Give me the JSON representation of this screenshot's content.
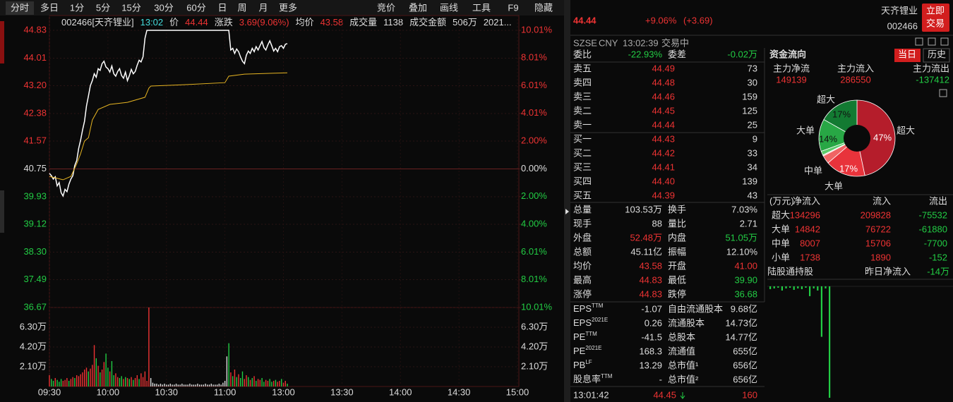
{
  "toolbar": {
    "tabs": [
      "分时",
      "多日",
      "1分",
      "5分",
      "15分",
      "30分",
      "60分",
      "日",
      "周",
      "月",
      "更多"
    ],
    "tools": [
      "竞价",
      "叠加",
      "画线",
      "工具",
      "F9",
      "隐藏"
    ]
  },
  "chart": {
    "type": "line",
    "info": [
      "002466[天齐锂业]",
      "13:02",
      "价",
      "44.44",
      "涨跌",
      "3.69(9.06%)",
      "均价",
      "43.58",
      "成交量",
      "1138",
      "成交金额",
      "506万",
      "2021..."
    ],
    "series": [
      {
        "color": "#ffffff",
        "x": [
          0,
          1,
          2,
          3,
          4,
          5,
          6,
          7,
          8,
          9,
          10,
          11,
          12,
          13,
          14,
          15,
          16,
          17,
          18,
          19,
          20,
          21,
          22,
          23,
          24,
          25,
          26,
          27,
          28,
          29,
          30,
          31,
          32,
          33,
          34,
          35,
          36,
          37,
          38,
          39,
          40,
          41,
          42,
          43,
          44,
          45,
          46,
          47,
          48,
          49,
          50,
          92,
          93,
          94,
          95,
          96,
          97,
          98,
          99,
          100,
          101,
          102,
          103,
          104,
          105,
          106,
          107,
          108,
          109,
          110,
          111,
          112,
          113,
          114,
          115,
          116,
          117,
          118,
          119,
          120,
          121,
          122
        ],
        "values": [
          40.62,
          40.55,
          40.45,
          40.52,
          40.25,
          40.35,
          40.05,
          39.95,
          40.15,
          40.08,
          40.3,
          40.45,
          40.55,
          40.85,
          41.0,
          41.35,
          41.6,
          41.9,
          42.15,
          42.6,
          42.9,
          43.2,
          43.35,
          43.55,
          43.45,
          43.7,
          43.65,
          43.85,
          43.92,
          43.75,
          43.7,
          43.6,
          43.78,
          43.55,
          43.48,
          43.62,
          43.7,
          43.5,
          43.42,
          43.6,
          43.35,
          43.5,
          43.68,
          43.55,
          43.62,
          43.8,
          43.95,
          43.9,
          44.05,
          44.6,
          44.83,
          44.83,
          44.25,
          44.3,
          44.15,
          44.28,
          44.2,
          44.05,
          43.92,
          43.85,
          44.1,
          44.22,
          44.15,
          44.3,
          44.2,
          44.35,
          44.25,
          44.38,
          44.5,
          44.32,
          44.25,
          44.4,
          44.52,
          44.38,
          44.22,
          44.3,
          44.2,
          44.35,
          44.38,
          44.3,
          44.42,
          44.44
        ]
      },
      {
        "color": "#e6b422",
        "x": [
          0,
          7,
          11,
          14,
          16,
          18,
          20,
          22,
          25,
          31,
          40,
          49,
          51,
          52,
          69,
          90,
          92,
          100,
          122
        ],
        "values": [
          40.53,
          40.43,
          40.53,
          40.9,
          41.2,
          41.57,
          41.67,
          42.19,
          42.5,
          42.65,
          42.71,
          42.86,
          43.13,
          43.19,
          43.23,
          43.29,
          43.48,
          43.54,
          43.58
        ]
      }
    ],
    "xlim": [
      0,
      240
    ],
    "xticks": [
      {
        "value": 0,
        "label": "09:30"
      },
      {
        "value": 30,
        "label": "10:00"
      },
      {
        "value": 60,
        "label": "10:30"
      },
      {
        "value": 90,
        "label": "11:00"
      },
      {
        "value": 120,
        "label": "13:00"
      },
      {
        "value": 150,
        "label": "13:30"
      },
      {
        "value": 180,
        "label": "14:00"
      },
      {
        "value": 210,
        "label": "14:30"
      },
      {
        "value": 240,
        "label": "15:00"
      }
    ],
    "ylim": [
      36.67,
      44.83
    ],
    "yticks": [
      44.83,
      44.01,
      {
        "value": 43.2,
        "label": "43.20"
      },
      42.38,
      41.57,
      40.75,
      39.93,
      39.12,
      {
        "value": 38.3,
        "label": "38.30"
      },
      37.49,
      36.67
    ],
    "y2lim": [
      -10.01,
      10.01
    ],
    "y2ticks": [
      {
        "value": 10.01,
        "label": "10.01%"
      },
      {
        "value": 8.01,
        "label": "8.01%"
      },
      {
        "value": 6.01,
        "label": "6.01%"
      },
      {
        "value": 4.01,
        "label": "4.01%"
      },
      {
        "value": 2,
        "label": "2.00%"
      },
      {
        "value": 0,
        "label": "0.00%"
      },
      {
        "value": -2,
        "label": "2.00%"
      },
      {
        "value": -4,
        "label": "4.00%"
      },
      {
        "value": -6.01,
        "label": "6.01%"
      },
      {
        "value": -8.01,
        "label": "8.01%"
      },
      {
        "value": -10.01,
        "label": "10.01%"
      }
    ],
    "volume": {
      "values": [
        1.2,
        0.8,
        0.6,
        0.9,
        0.7,
        0.5,
        0.8,
        0.6,
        0.7,
        0.9,
        0.6,
        0.8,
        1.0,
        0.9,
        1.2,
        1.1,
        1.3,
        1.5,
        1.8,
        2.0,
        1.6,
        1.9,
        2.3,
        4.4,
        3.0,
        2.2,
        1.5,
        1.8,
        2.6,
        3.5,
        2.0,
        1.6,
        2.7,
        1.2,
        1.4,
        1.0,
        0.9,
        1.1,
        0.8,
        1.0,
        0.9,
        0.8,
        1.0,
        0.7,
        0.9,
        1.2,
        0.8,
        1.4,
        1.0,
        1.6,
        0.6,
        8.4,
        0.9,
        0.4,
        0.3,
        0.3,
        0.2,
        0.3,
        0.2,
        0.3,
        0.2,
        0.2,
        0.3,
        0.2,
        0.2,
        0.3,
        0.2,
        0.2,
        0.3,
        0.2,
        0.2,
        0.2,
        0.3,
        0.2,
        0.2,
        0.2,
        0.3,
        0.2,
        0.2,
        0.2,
        0.3,
        0.2,
        0.2,
        0.3,
        0.2,
        0.2,
        0.2,
        0.3,
        0.2,
        0.4,
        0.6,
        3.2,
        4.6,
        1.5,
        1.1,
        1.8,
        1.0,
        1.3,
        0.9,
        1.6,
        0.8,
        1.2,
        1.0,
        0.7,
        0.9,
        1.1,
        0.6,
        0.8,
        0.7,
        0.9,
        0.5,
        0.7,
        0.6,
        0.8,
        0.5,
        0.6,
        0.7,
        0.5,
        0.6,
        0.8,
        0.4,
        0.6,
        0.3
      ],
      "colors": [
        "#e33",
        "#2c4",
        "#2c4",
        "#e33",
        "#2c4",
        "#2c4",
        "#2c4",
        "#e33",
        "#e33",
        "#e33",
        "#2c4",
        "#e33",
        "#e33",
        "#2c4",
        "#e33",
        "#e33",
        "#e33",
        "#e33",
        "#e33",
        "#e33",
        "#2c4",
        "#e33",
        "#e33",
        "#e33",
        "#2c4",
        "#e33",
        "#2c4",
        "#e33",
        "#e33",
        "#2c4",
        "#2c4",
        "#e33",
        "#2c4",
        "#2c4",
        "#e33",
        "#e33",
        "#2c4",
        "#2c4",
        "#e33",
        "#2c4",
        "#e33",
        "#2c4",
        "#e33",
        "#2c4",
        "#e33",
        "#e33",
        "#2c4",
        "#e33",
        "#e33",
        "#e33",
        "#e33",
        "#e33",
        "#ddd",
        "#ddd",
        "#ddd",
        "#ddd",
        "#ddd",
        "#ddd",
        "#ddd",
        "#ddd",
        "#ddd",
        "#ddd",
        "#ddd",
        "#ddd",
        "#ddd",
        "#ddd",
        "#ddd",
        "#ddd",
        "#ddd",
        "#ddd",
        "#ddd",
        "#ddd",
        "#ddd",
        "#ddd",
        "#ddd",
        "#ddd",
        "#ddd",
        "#ddd",
        "#ddd",
        "#ddd",
        "#ddd",
        "#ddd",
        "#ddd",
        "#ddd",
        "#ddd",
        "#ddd",
        "#ddd",
        "#ddd",
        "#ddd",
        "#ddd",
        "#ddd",
        "#ddd",
        "#2c4",
        "#e33",
        "#2c4",
        "#e33",
        "#2c4",
        "#e33",
        "#2c4",
        "#2c4",
        "#e33",
        "#e33",
        "#2c4",
        "#e33",
        "#2c4",
        "#e33",
        "#2c4",
        "#e33",
        "#e33",
        "#2c4",
        "#2c4",
        "#e33",
        "#e33",
        "#2c4",
        "#2c4",
        "#e33",
        "#2c4",
        "#e33",
        "#e33",
        "#2c4",
        "#e33",
        "#e33",
        "#2c4"
      ],
      "ylim": [
        0,
        8.4
      ],
      "yticks": [
        {
          "value": 2.1,
          "label": "2.10万"
        },
        {
          "value": 4.2,
          "label": "4.20万"
        },
        {
          "value": 6.3,
          "label": "6.30万"
        }
      ]
    }
  },
  "quote": {
    "price": "44.44",
    "pct": "+9.06%",
    "chg": "(+3.69)",
    "name": "天齐锂业",
    "code": "002466",
    "btn": [
      "立即",
      "交易"
    ],
    "meta": [
      "SZSE",
      "CNY",
      "13:02:39",
      "交易中"
    ],
    "weibi": [
      "委比",
      "-22.93%",
      "委差",
      "-0.02万"
    ],
    "book": [
      [
        "卖五",
        "44.49",
        "73"
      ],
      [
        "卖四",
        "44.48",
        "30"
      ],
      [
        "卖三",
        "44.46",
        "159"
      ],
      [
        "卖二",
        "44.45",
        "125"
      ],
      [
        "卖一",
        "44.44",
        "25"
      ],
      [
        "买一",
        "44.43",
        "9"
      ],
      [
        "买二",
        "44.42",
        "33"
      ],
      [
        "买三",
        "44.41",
        "34"
      ],
      [
        "买四",
        "44.40",
        "139"
      ],
      [
        "买五",
        "44.39",
        "43"
      ]
    ],
    "stats": [
      [
        "总量",
        "103.53万",
        "换手",
        "7.03%"
      ],
      [
        "现手",
        "88",
        "量比",
        "2.71"
      ],
      [
        "外盘",
        "52.48万",
        "内盘",
        "51.05万"
      ],
      [
        "总额",
        "45.11亿",
        "振幅",
        "12.10%"
      ],
      [
        "均价",
        "43.58",
        "开盘",
        "41.00"
      ],
      [
        "最高",
        "44.83",
        "最低",
        "39.90"
      ],
      [
        "涨停",
        "44.83",
        "跌停",
        "36.68"
      ]
    ],
    "stat_colors": [
      [
        "#ddd",
        "#ddd"
      ],
      [
        "#ddd",
        "#ddd"
      ],
      [
        "#e33",
        "#2c4"
      ],
      [
        "#ddd",
        "#ddd"
      ],
      [
        "#e33",
        "#e33"
      ],
      [
        "#e33",
        "#2c4"
      ],
      [
        "#e33",
        "#2c4"
      ]
    ],
    "fund": [
      [
        [
          "EPS",
          "TTM"
        ],
        "-1.07",
        "自由流通股本",
        "9.68亿"
      ],
      [
        [
          "EPS",
          "2021E"
        ],
        "0.26",
        "流通股本",
        "14.73亿"
      ],
      [
        [
          "PE",
          "TTM"
        ],
        "-41.5",
        "总股本",
        "14.77亿"
      ],
      [
        [
          "PE",
          "2021E"
        ],
        "168.3",
        "流通值",
        "655亿"
      ],
      [
        [
          "PB",
          "LF"
        ],
        "13.29",
        "总市值¹",
        "656亿"
      ],
      [
        [
          "股息率",
          "TTM"
        ],
        "-",
        "总市值²",
        "656亿"
      ]
    ],
    "last": [
      "13:01:42",
      "44.45",
      "160"
    ]
  },
  "flow": {
    "title": "资金流向",
    "tabs": [
      "当日",
      "历史"
    ],
    "main_heads": [
      "主力净流",
      "主力流入",
      "主力流出"
    ],
    "main": [
      149139,
      286550,
      -137412
    ],
    "pie": {
      "type": "pie",
      "labels": [
        "超大",
        "大单",
        "中单",
        "大单",
        "超大"
      ],
      "pct_labels": [
        "47%",
        "17%",
        "14%",
        "17%"
      ],
      "colors": [
        "#b51d2b",
        "#e8333b",
        "#f06464",
        "#f59a9a",
        "#9fe0a8",
        "#5ccb6b",
        "#28a745",
        "#137a32"
      ]
    },
    "table": {
      "head": [
        "(万元)",
        "净流入",
        "流入",
        "流出"
      ],
      "rows": [
        [
          "超大",
          134296,
          209828,
          -75532
        ],
        [
          "大单",
          14842,
          76722,
          -61880
        ],
        [
          "中单",
          8007,
          15706,
          -7700
        ],
        [
          "小单",
          1738,
          1890,
          -152
        ]
      ]
    },
    "hk": [
      "陆股通持股",
      "昨日净流入",
      "-14万"
    ],
    "hk_bars": {
      "values": [
        -4,
        -3,
        -2,
        -6,
        -3,
        -2,
        -5,
        -3,
        -4,
        -2,
        -14,
        -3,
        -6,
        -72,
        -3,
        -159
      ],
      "ylim": [
        -160,
        0
      ]
    }
  }
}
